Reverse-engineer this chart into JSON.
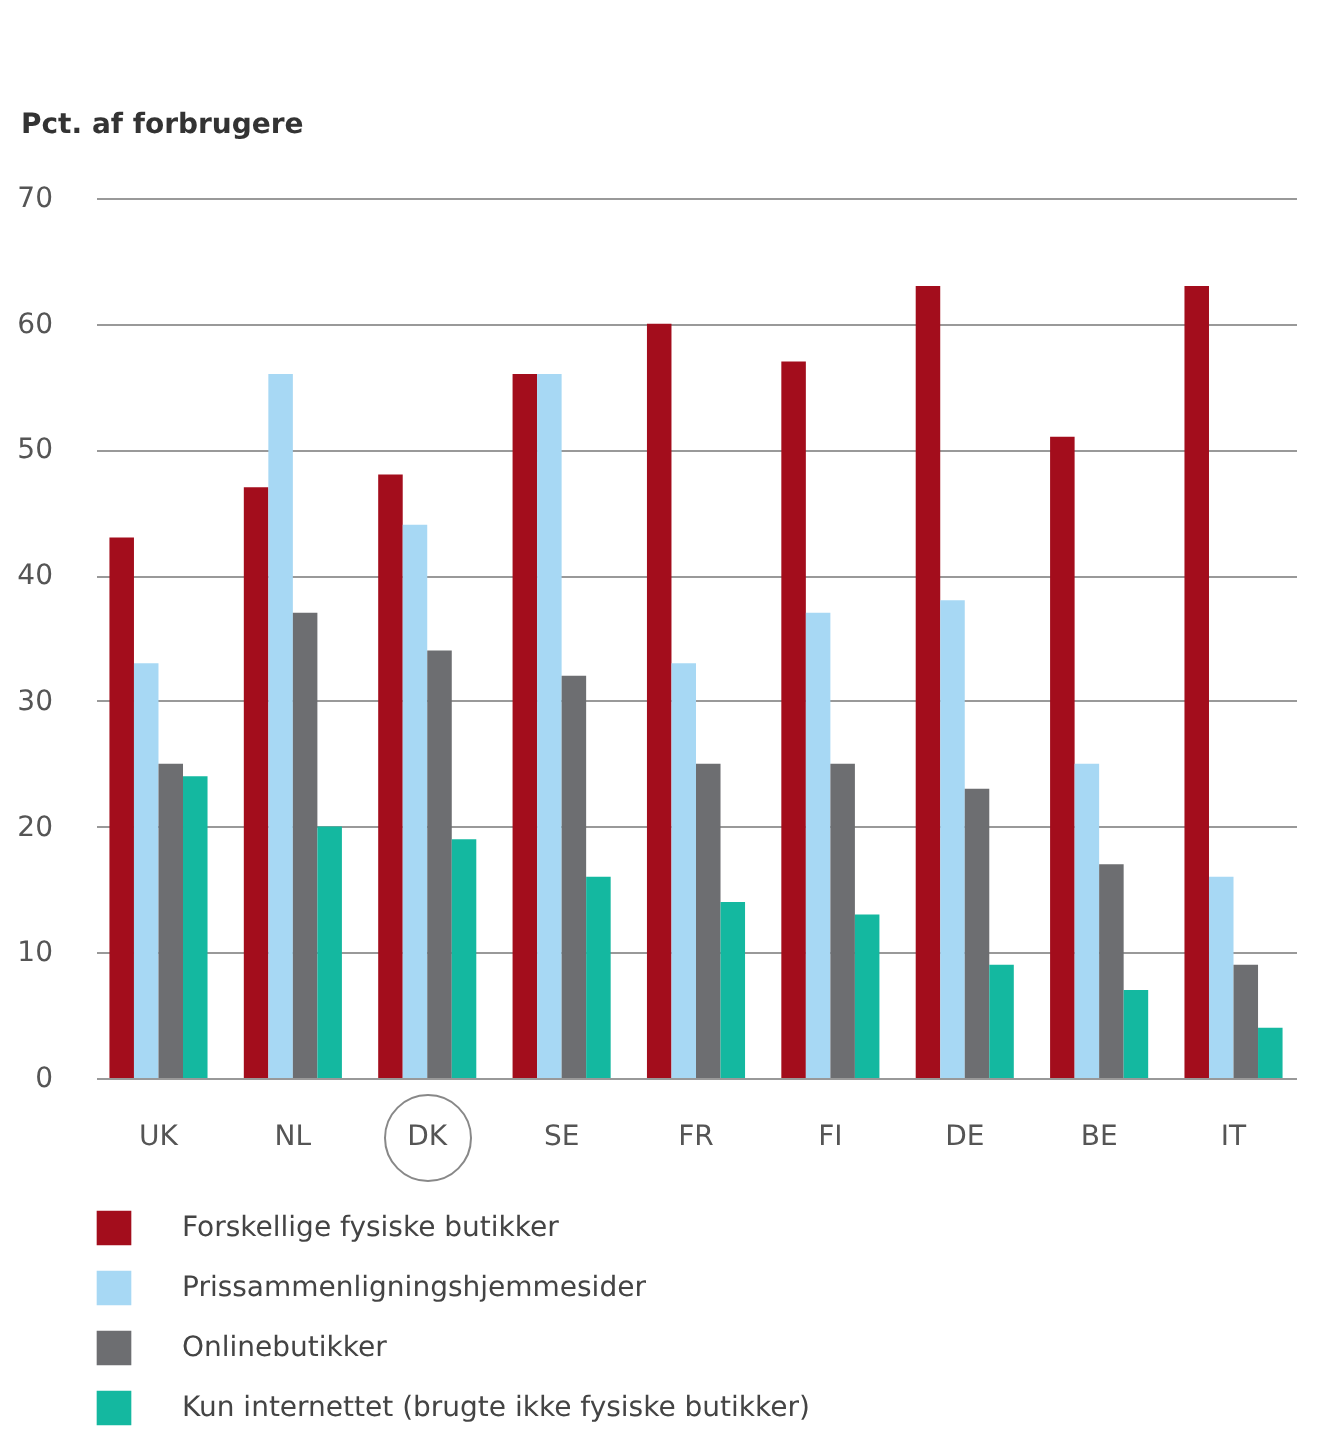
{
  "chart_data": {
    "type": "bar",
    "ylabel": "Pct. af forbrugere",
    "categories": [
      "UK",
      "NL",
      "DK",
      "SE",
      "FR",
      "FI",
      "DE",
      "BE",
      "IT"
    ],
    "series": [
      {
        "name": "Forskellige fysiske butikker",
        "color": "#a30d1c",
        "values": [
          43,
          47,
          48,
          56,
          60,
          57,
          63,
          51,
          63
        ]
      },
      {
        "name": "Prissammenligningshjemmesider",
        "color": "#a7d8f4",
        "values": [
          33,
          56,
          44,
          56,
          33,
          37,
          38,
          25,
          16
        ]
      },
      {
        "name": "Onlinebutikker",
        "color": "#6d6e71",
        "values": [
          25,
          37,
          34,
          32,
          25,
          25,
          23,
          17,
          9
        ]
      },
      {
        "name": "Kun internettet (brugte ikke fysiske butikker)",
        "color": "#14b8a0",
        "values": [
          24,
          20,
          19,
          16,
          14,
          13,
          9,
          7,
          4
        ]
      }
    ],
    "ylim": [
      0,
      70
    ],
    "yticks": [
      0,
      10,
      20,
      30,
      40,
      50,
      60,
      70
    ],
    "grid": "y",
    "legend": "bottom"
  }
}
